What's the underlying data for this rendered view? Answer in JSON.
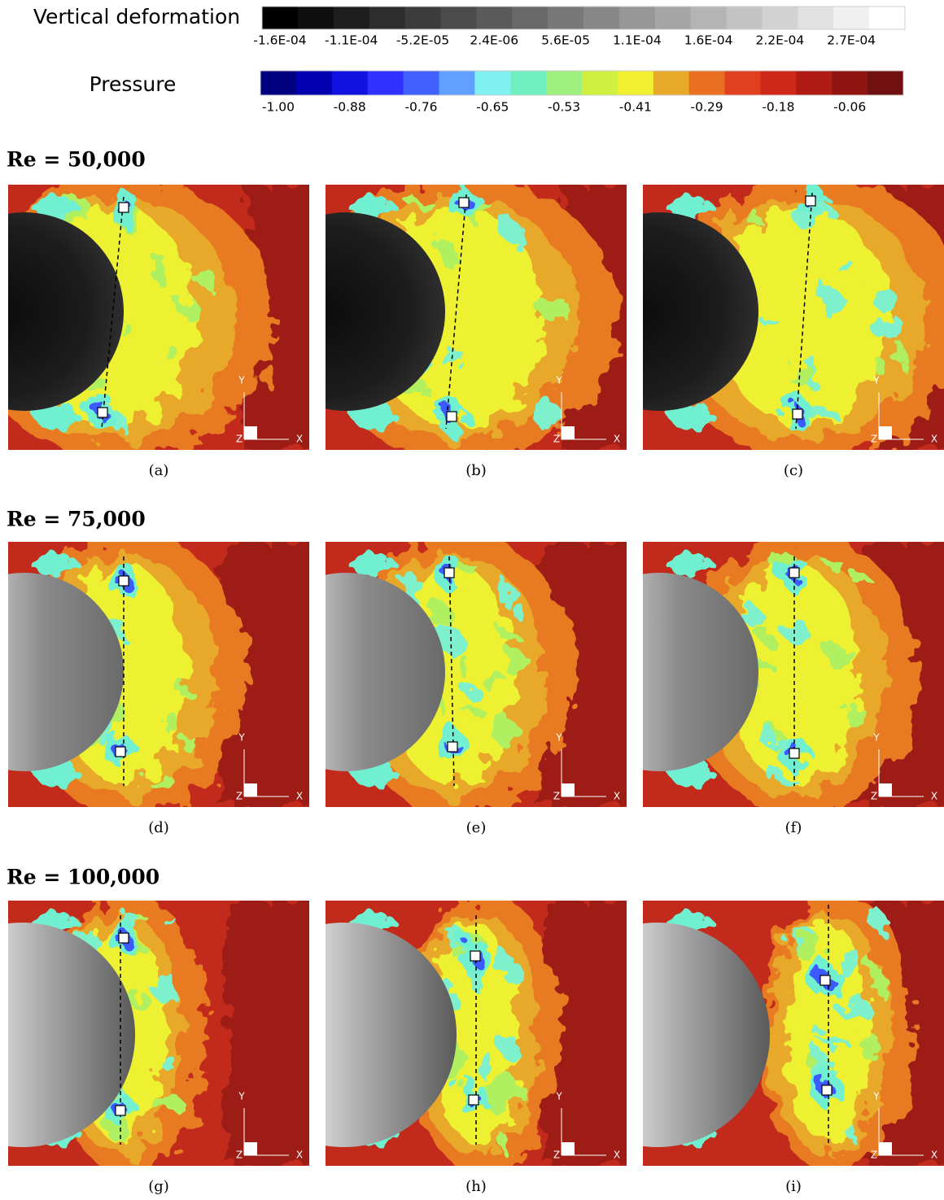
{
  "colorbars": [
    {
      "title": "Vertical deformation",
      "colors": [
        "#000000",
        "#0f0f0f",
        "#1e1e1e",
        "#2d2d2d",
        "#3c3c3c",
        "#4b4b4b",
        "#5a5a5a",
        "#696969",
        "#787878",
        "#878787",
        "#969696",
        "#a5a5a5",
        "#b4b4b4",
        "#c3c3c3",
        "#d2d2d2",
        "#e1e1e1",
        "#f0f0f0",
        "#ffffff"
      ],
      "labels": [
        "-1.6E-04",
        "-1.1E-04",
        "-5.2E-05",
        "2.4E-06",
        "5.6E-05",
        "1.1E-04",
        "1.6E-04",
        "2.2E-04",
        "2.7E-04"
      ]
    },
    {
      "title": "Pressure",
      "colors": [
        "#000080",
        "#0000b0",
        "#1010e0",
        "#3030ff",
        "#4060ff",
        "#60a0ff",
        "#80f0f0",
        "#70f0c0",
        "#a0f080",
        "#d0f040",
        "#f0f030",
        "#e8a828",
        "#e87020",
        "#e04020",
        "#d02818",
        "#b01c14",
        "#901410",
        "#701010"
      ],
      "labels": [
        "-1.00",
        "-0.88",
        "-0.76",
        "-0.65",
        "-0.53",
        "-0.41",
        "-0.29",
        "-0.18",
        "-0.06"
      ]
    }
  ],
  "axes": {
    "x": "X",
    "y": "Y",
    "z": "Z"
  },
  "rows": [
    {
      "heading": "Re = 50,000",
      "panels": [
        {
          "caption": "(a)"
        },
        {
          "caption": "(b)"
        },
        {
          "caption": "(c)"
        }
      ]
    },
    {
      "heading": "Re = 75,000",
      "panels": [
        {
          "caption": "(d)"
        },
        {
          "caption": "(e)"
        },
        {
          "caption": "(f)"
        }
      ]
    },
    {
      "heading": "Re = 100,000",
      "panels": [
        {
          "caption": "(g)"
        },
        {
          "caption": "(h)"
        },
        {
          "caption": "(i)"
        }
      ]
    }
  ]
}
